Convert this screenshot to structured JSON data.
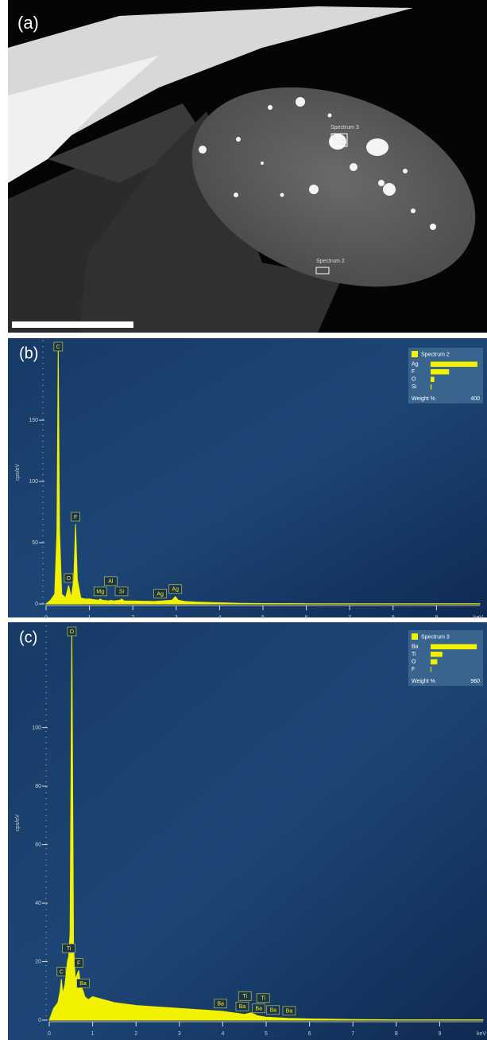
{
  "image": {
    "label": "(a)",
    "annotations": [
      "Spectrum 3",
      "Spectrum 2"
    ]
  },
  "chart_data": [
    {
      "type": "area",
      "panel_label": "(b)",
      "ylabel": "cps/eV",
      "xlabel": "keV",
      "color": "#f2f200",
      "x": [
        0,
        0.1,
        0.2,
        0.25,
        0.28,
        0.31,
        0.36,
        0.45,
        0.52,
        0.58,
        0.64,
        0.68,
        0.72,
        0.8,
        0.9,
        1.0,
        1.2,
        1.25,
        1.3,
        1.45,
        1.49,
        1.55,
        1.7,
        1.74,
        1.8,
        2.0,
        2.5,
        2.9,
        2.98,
        3.05,
        3.2,
        3.5,
        4,
        4.5,
        5,
        6,
        7,
        8,
        9,
        10
      ],
      "values": [
        0,
        3,
        8,
        60,
        210,
        60,
        8,
        5,
        15,
        5,
        20,
        65,
        20,
        5,
        4,
        4,
        3,
        4,
        3,
        2.5,
        3,
        2.5,
        3,
        4,
        2.5,
        2.5,
        2,
        3,
        6,
        3,
        2,
        1.5,
        1,
        0.5,
        0.3,
        0.2,
        0.1,
        0.1,
        0.1,
        0.1
      ],
      "xlim": [
        0,
        10
      ],
      "xticks": [
        0,
        1,
        2,
        3,
        4,
        5,
        6,
        7,
        8,
        9
      ],
      "ylim": [
        0,
        215
      ],
      "yticks": [
        0,
        50,
        100,
        150
      ],
      "peak_labels": [
        {
          "label": "C",
          "x": 0.28
        },
        {
          "label": "O",
          "x": 0.52
        },
        {
          "label": "F",
          "x": 0.68
        },
        {
          "label": "Mg",
          "x": 1.25
        },
        {
          "label": "Al",
          "x": 1.49
        },
        {
          "label": "Si",
          "x": 1.74
        },
        {
          "label": "Ag",
          "x": 2.63
        },
        {
          "label": "Ag",
          "x": 2.98
        }
      ],
      "inset": {
        "title": "Spectrum 2",
        "categories": [
          "Ag",
          "F",
          "O",
          "Si"
        ],
        "values": [
          380,
          150,
          30,
          8
        ],
        "xlabel": "Weight %",
        "xlim": [
          0,
          400
        ],
        "xticks": [
          400
        ]
      }
    },
    {
      "type": "area",
      "panel_label": "(c)",
      "ylabel": "cps/eV",
      "xlabel": "keV",
      "color": "#f2f200",
      "x": [
        0,
        0.1,
        0.2,
        0.25,
        0.28,
        0.31,
        0.36,
        0.42,
        0.45,
        0.48,
        0.52,
        0.56,
        0.6,
        0.68,
        0.72,
        0.78,
        0.82,
        0.9,
        1.0,
        1.5,
        2,
        2.5,
        3,
        3.5,
        4,
        4.5,
        4.65,
        4.8,
        5,
        5.5,
        6,
        7,
        8,
        9,
        10
      ],
      "values": [
        0,
        4,
        6,
        10,
        14,
        9,
        12,
        20,
        22,
        30,
        133,
        25,
        14,
        17,
        12,
        10,
        8,
        7,
        8,
        6,
        5,
        4.5,
        4,
        3.5,
        3,
        2,
        2.5,
        1.5,
        1,
        0.6,
        0.4,
        0.2,
        0.1,
        0.1,
        0.1
      ],
      "xlim": [
        0,
        10
      ],
      "xticks": [
        0,
        1,
        2,
        3,
        4,
        5,
        6,
        7,
        8,
        9
      ],
      "ylim": [
        0,
        135
      ],
      "yticks": [
        0,
        20,
        40,
        60,
        80,
        100
      ],
      "peak_labels": [
        {
          "label": "C",
          "x": 0.28
        },
        {
          "label": "Ti",
          "x": 0.45
        },
        {
          "label": "O",
          "x": 0.52
        },
        {
          "label": "F",
          "x": 0.68
        },
        {
          "label": "Ba",
          "x": 0.78
        },
        {
          "label": "Ba",
          "x": 3.95
        },
        {
          "label": "Ba",
          "x": 4.45
        },
        {
          "label": "Ti",
          "x": 4.51
        },
        {
          "label": "Ba",
          "x": 4.83
        },
        {
          "label": "Ti",
          "x": 4.93
        },
        {
          "label": "Ba",
          "x": 5.16
        },
        {
          "label": "Ba",
          "x": 5.53
        }
      ],
      "inset": {
        "title": "Spectrum 3",
        "categories": [
          "Ba",
          "Ti",
          "O",
          "F"
        ],
        "values": [
          900,
          230,
          130,
          10
        ],
        "xlabel": "Weight %",
        "xlim": [
          0,
          960
        ],
        "xticks": [
          960
        ]
      }
    }
  ]
}
